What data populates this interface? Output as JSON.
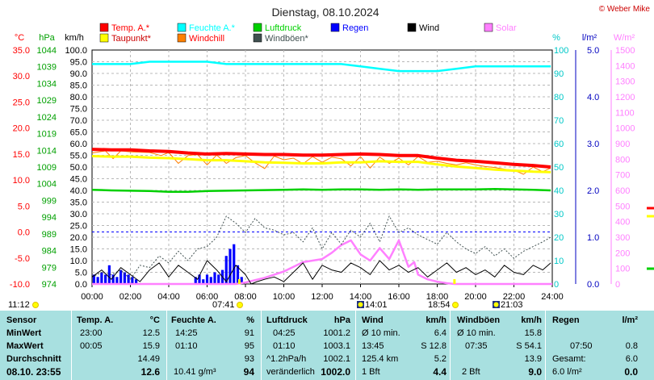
{
  "header": {
    "title": "Dienstag, 08.10.2024",
    "credit": "© Weber Mike"
  },
  "legend": [
    {
      "label": "Temp. A.*",
      "color": "#ff0000"
    },
    {
      "label": "Feuchte A.*",
      "color": "#00ffff"
    },
    {
      "label": "Luftdruck",
      "color": "#00d000"
    },
    {
      "label": "Regen",
      "color": "#0000ff"
    },
    {
      "label": "Wind",
      "color": "#000000"
    },
    {
      "label": "Solar",
      "color": "#ff80ff"
    },
    {
      "label": "Taupunkt*",
      "color": "#ffff00"
    },
    {
      "label": "Windchill",
      "color": "#ff8000"
    },
    {
      "label": "Windböen*",
      "color": "#405050"
    }
  ],
  "axis_units": {
    "temp": "°C",
    "pressure": "hPa",
    "wind": "km/h",
    "humidity": "%",
    "rain": "l/m²",
    "solar": "W/m²"
  },
  "axis_colors": {
    "temp": "#ff0000",
    "pressure": "#00c000",
    "wind": "#000000",
    "humidity": "#00d0d0",
    "rain": "#0000c0",
    "solar": "#ff80ff"
  },
  "chart_data": {
    "type": "line",
    "x_ticks": [
      "00:00",
      "02:00",
      "04:00",
      "06:00",
      "08:00",
      "10:00",
      "12:00",
      "14:00",
      "16:00",
      "18:00",
      "20:00",
      "22:00",
      "24:00"
    ],
    "xlim": [
      0,
      24
    ],
    "axes": {
      "temp": {
        "lim": [
          -10,
          35
        ],
        "ticks": [
          "35.0",
          "30.0",
          "25.0",
          "20.0",
          "15.0",
          "10.0",
          "5.0",
          "0.0",
          "-5.0",
          "-10.0"
        ]
      },
      "pressure": {
        "lim": [
          974,
          1044
        ],
        "ticks": [
          "1044",
          "1039",
          "1034",
          "1029",
          "1024",
          "1019",
          "1014",
          "1009",
          "1004",
          "999",
          "994",
          "989",
          "984",
          "979",
          "974"
        ]
      },
      "wind": {
        "lim": [
          0,
          100
        ],
        "ticks": [
          "100.0",
          "95.0",
          "90.0",
          "85.0",
          "80.0",
          "75.0",
          "70.0",
          "65.0",
          "60.0",
          "55.0",
          "50.0",
          "45.0",
          "40.0",
          "35.0",
          "30.0",
          "25.0",
          "20.0",
          "15.0",
          "10.0",
          "5.0",
          "0.0"
        ]
      },
      "humidity": {
        "lim": [
          0,
          100
        ],
        "ticks": [
          "100",
          "90",
          "80",
          "70",
          "60",
          "50",
          "40",
          "30",
          "20",
          "10",
          "0"
        ]
      },
      "rain": {
        "lim": [
          0,
          5
        ],
        "ticks": [
          "5.0",
          "4.0",
          "3.0",
          "2.0",
          "1.0",
          "0.0"
        ]
      },
      "solar": {
        "lim": [
          0,
          1500
        ],
        "ticks": [
          "1500",
          "1400",
          "1300",
          "1200",
          "1100",
          "1000",
          "900",
          "800",
          "700",
          "600",
          "500",
          "400",
          "300",
          "200",
          "100",
          "0"
        ]
      }
    },
    "series": [
      {
        "name": "Temp. A.*",
        "axis": "temp",
        "x": [
          0,
          1,
          2,
          3,
          4,
          5,
          6,
          7,
          8,
          9,
          10,
          11,
          12,
          13,
          14,
          15,
          16,
          17,
          18,
          19,
          20,
          21,
          22,
          23,
          23.92
        ],
        "y": [
          15.9,
          15.8,
          15.8,
          15.6,
          15.5,
          15.2,
          15.0,
          15.1,
          15.0,
          14.9,
          14.9,
          14.8,
          14.8,
          14.9,
          15.0,
          14.9,
          14.7,
          14.7,
          14.2,
          13.8,
          13.6,
          13.3,
          13.0,
          12.8,
          12.5
        ]
      },
      {
        "name": "Taupunkt*",
        "axis": "temp",
        "x": [
          0,
          1,
          2,
          3,
          4,
          5,
          6,
          7,
          8,
          9,
          10,
          11,
          12,
          13,
          14,
          15,
          16,
          17,
          18,
          19,
          20,
          21,
          22,
          23,
          23.92
        ],
        "y": [
          14.6,
          14.5,
          14.5,
          14.3,
          14.2,
          14.0,
          13.8,
          13.8,
          13.6,
          13.4,
          13.3,
          13.2,
          13.2,
          13.4,
          13.4,
          13.6,
          13.5,
          13.5,
          13.0,
          12.6,
          12.3,
          12.0,
          11.8,
          11.6,
          11.5
        ]
      },
      {
        "name": "Windchill",
        "axis": "temp",
        "x": [
          0,
          0.7,
          1.1,
          1.5,
          2,
          3,
          3.6,
          4,
          4.5,
          5,
          5.5,
          6,
          6.5,
          7,
          7.5,
          8,
          8.5,
          9,
          9.5,
          10,
          10.5,
          11,
          11.5,
          12,
          12.5,
          13,
          13.5,
          14,
          14.5,
          15,
          15.5,
          16,
          16.5,
          17,
          17.5,
          18,
          18.5,
          19,
          19.5,
          20,
          20.5,
          21,
          21.5,
          22,
          22.5,
          23,
          23.5,
          23.92
        ],
        "y": [
          15.2,
          15.6,
          14.1,
          15.6,
          15.4,
          15.3,
          14.7,
          15.3,
          13.2,
          14.7,
          14.9,
          12.9,
          14.8,
          13.2,
          14.3,
          14.7,
          13.3,
          12.2,
          14.6,
          13.9,
          14.2,
          13.1,
          14.5,
          13.4,
          14.4,
          14.1,
          12.7,
          14.5,
          12.3,
          14.4,
          13.2,
          14.2,
          12.9,
          14.5,
          13.4,
          13.6,
          13.2,
          12.9,
          13.3,
          12.9,
          12.6,
          12.4,
          12.1,
          11.9,
          11.1,
          12.5,
          11.6,
          12.3
        ]
      },
      {
        "name": "Feuchte A.*",
        "axis": "humidity",
        "x": [
          0,
          1,
          2,
          3,
          4,
          5,
          6,
          7,
          8,
          9,
          10,
          11,
          12,
          13,
          14,
          15,
          16,
          17,
          18,
          19,
          20,
          21,
          22,
          23,
          23.92
        ],
        "y": [
          94,
          94,
          94,
          95,
          95,
          95,
          95,
          94,
          94,
          94,
          94,
          94,
          94,
          94,
          93,
          92,
          91,
          91,
          91,
          92,
          93,
          93,
          93,
          93,
          93
        ]
      },
      {
        "name": "Luftdruck",
        "axis": "pressure",
        "x": [
          0,
          1,
          2,
          3,
          4,
          5,
          6,
          7,
          8,
          9,
          10,
          11,
          12,
          13,
          14,
          15,
          16,
          17,
          18,
          19,
          20,
          21,
          22,
          23,
          23.92
        ],
        "y": [
          1002.2,
          1002.0,
          1001.9,
          1001.8,
          1001.6,
          1001.6,
          1001.8,
          1001.9,
          1002.0,
          1002.1,
          1002.2,
          1002.3,
          1002.2,
          1002.3,
          1002.3,
          1002.2,
          1002.3,
          1002.2,
          1002.3,
          1002.3,
          1002.3,
          1002.4,
          1002.3,
          1002.2,
          1002.0
        ]
      },
      {
        "name": "Wind",
        "axis": "wind",
        "x": [
          0,
          0.5,
          1,
          1.5,
          2,
          2.5,
          3,
          3.5,
          4,
          4.5,
          5,
          5.5,
          6,
          6.5,
          7,
          7.5,
          8,
          8.3,
          8.6,
          9,
          9.5,
          10,
          10.5,
          11,
          11.5,
          12,
          12.5,
          13,
          13.5,
          14,
          14.5,
          15,
          15.5,
          16,
          16.5,
          17,
          17.5,
          18,
          18.5,
          19,
          19.5,
          20,
          20.5,
          21,
          21.5,
          22,
          22.5,
          23,
          23.5,
          23.92
        ],
        "y": [
          3,
          6,
          2,
          7,
          4,
          1,
          6,
          9,
          3,
          8,
          5,
          2,
          10,
          6,
          1,
          8,
          4,
          0,
          1,
          2,
          3,
          1,
          5,
          9,
          2,
          8,
          6,
          5,
          9,
          7,
          4,
          10,
          6,
          8,
          5,
          7,
          3,
          6,
          9,
          5,
          7,
          4,
          6,
          3,
          8,
          5,
          4,
          8,
          6,
          9
        ]
      },
      {
        "name": "Windböen*",
        "axis": "wind",
        "x": [
          0,
          0.5,
          1,
          1.5,
          2,
          2.5,
          3,
          3.5,
          4,
          4.5,
          5,
          5.5,
          6,
          6.5,
          7,
          7.5,
          8,
          8.5,
          9,
          9.5,
          10,
          10.5,
          11,
          11.5,
          12,
          12.5,
          13,
          13.5,
          14,
          14.5,
          15,
          15.5,
          16,
          16.5,
          17,
          17.5,
          18,
          18.5,
          19,
          19.5,
          20,
          20.5,
          21,
          21.5,
          22,
          22.5,
          23,
          23.5,
          23.92
        ],
        "y": [
          3,
          5,
          4,
          6,
          2,
          8,
          7,
          12,
          9,
          14,
          10,
          15,
          16,
          20,
          29,
          26,
          22,
          28,
          24,
          23,
          21,
          22,
          18,
          24,
          15,
          22,
          17,
          23,
          20,
          26,
          18,
          29,
          22,
          24,
          21,
          19,
          17,
          22,
          18,
          15,
          13,
          16,
          12,
          15,
          11,
          14,
          16,
          18,
          20
        ]
      },
      {
        "name": "Solar",
        "axis": "solar",
        "x": [
          0,
          7.5,
          8,
          8.5,
          9,
          9.5,
          10,
          10.5,
          11,
          11.5,
          12,
          12.5,
          13,
          13.5,
          14,
          14.5,
          15,
          15.5,
          16,
          16.5,
          16.8,
          17,
          17.5,
          18,
          18.5,
          18.9,
          24
        ],
        "y": [
          0,
          0,
          10,
          25,
          40,
          60,
          80,
          110,
          140,
          150,
          160,
          200,
          250,
          280,
          190,
          150,
          230,
          160,
          280,
          110,
          140,
          60,
          30,
          15,
          5,
          0,
          0
        ]
      },
      {
        "name": "Regen",
        "axis": "rain",
        "type": "bar",
        "x": [
          0.1,
          0.3,
          0.5,
          0.7,
          0.9,
          1.1,
          1.3,
          1.5,
          1.7,
          1.9,
          2.1,
          2.3,
          5.4,
          5.6,
          5.8,
          6.0,
          6.2,
          6.4,
          6.6,
          6.8,
          7.0,
          7.2,
          7.4,
          7.6,
          7.8
        ],
        "y": [
          0.2,
          0.15,
          0.25,
          0.2,
          0.4,
          0.2,
          0.15,
          0.3,
          0.25,
          0.2,
          0.15,
          0.1,
          0.15,
          0.2,
          0.1,
          0.2,
          0.15,
          0.25,
          0.2,
          0.3,
          0.6,
          0.75,
          0.85,
          0.4,
          0.15
        ]
      }
    ]
  },
  "markers": {
    "sunrise": {
      "label": "07:41",
      "icon": "sun-icon"
    },
    "sunset": {
      "label": "18:54",
      "icon": "sun-icon"
    },
    "moonrise": {
      "label": "14:01",
      "icon": "moon-icon"
    },
    "moonset": {
      "label": "21:03",
      "icon": "moon-icon"
    },
    "update_time": "11:12"
  },
  "stats": {
    "row_labels": [
      "Sensor",
      "MinWert",
      "MaxWert",
      "Durchschnitt",
      "08.10. 23:55"
    ],
    "temp": {
      "title": "Temp. A.",
      "unit": "°C",
      "min_time": "23:00",
      "min": "12.5",
      "max_time": "00:05",
      "max": "15.9",
      "avg": "14.49",
      "current": "12.6"
    },
    "humidity": {
      "title": "Feuchte A.",
      "unit": "%",
      "min_time": "14:25",
      "min": "91",
      "max_time": "01:10",
      "max": "95",
      "avg": "93",
      "abs": "10.41 g/m³",
      "current": "94"
    },
    "pressure": {
      "title": "Luftdruck",
      "unit": "hPa",
      "min_time": "04:25",
      "min": "1001.2",
      "max_time": "01:10",
      "max": "1003.1",
      "avg_trend": "^1.2hPa/h",
      "avg": "1002.1",
      "trend_text": "veränderlich",
      "current": "1002.0"
    },
    "wind": {
      "title": "Wind",
      "unit": "km/h",
      "r1_label": "Ø 10 min.",
      "r1_val": "6.4",
      "r2_time": "13:45",
      "r2_val": "S 12.8",
      "r3_label": "125.4 km",
      "r3_val": "5.2",
      "r4_label": "1 Bft",
      "current": "4.4"
    },
    "gusts": {
      "title": "Windböen",
      "unit": "km/h",
      "r1_label": "Ø 10 min.",
      "r1_val": "15.8",
      "r2_time": "07:35",
      "r2_val": "S 54.1",
      "r3_val": "13.9",
      "r4_label": "2 Bft",
      "current": "9.0"
    },
    "rain": {
      "title": "Regen",
      "unit": "l/m²",
      "r2_time": "07:50",
      "r2_val": "0.8",
      "r3_label": "Gesamt:",
      "r3_val": "6.0",
      "r4_label": "6.0 l/m²",
      "current": "0.0"
    }
  }
}
